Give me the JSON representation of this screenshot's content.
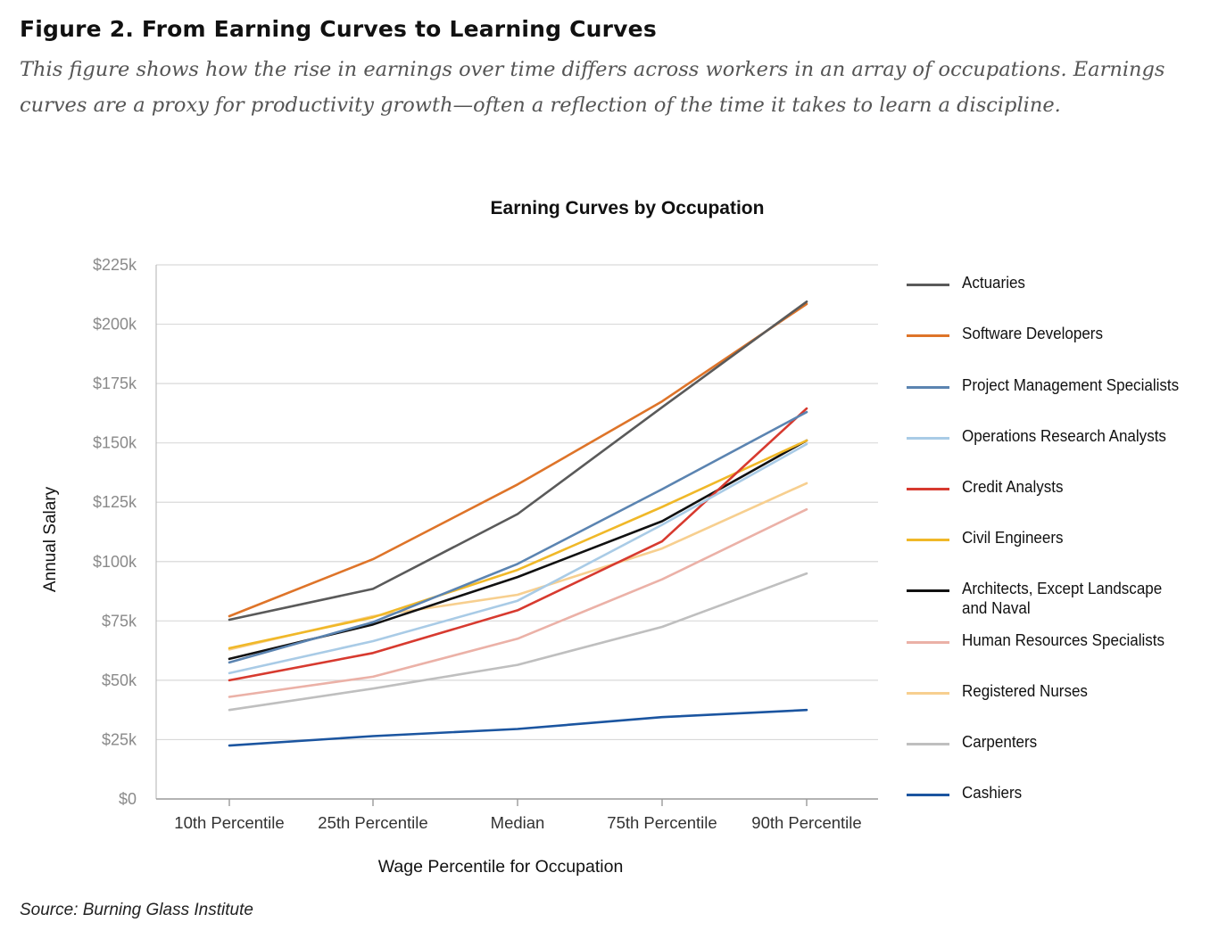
{
  "figure": {
    "title": "Figure 2. From Earning Curves to Learning Curves",
    "caption": "This figure shows how the rise in earnings over time differs across workers in an array of occupations. Earnings curves are a proxy for productivity growth—often a reflection of the time it takes to learn a discipline.",
    "source": "Source: Burning Glass Institute"
  },
  "chart_data": {
    "type": "line",
    "title": "Earning Curves by Occupation",
    "xlabel": "Wage Percentile for Occupation",
    "ylabel": "Annual Salary",
    "categories": [
      "10th Percentile",
      "25th Percentile",
      "Median",
      "75th Percentile",
      "90th Percentile"
    ],
    "ylim": [
      0,
      225000
    ],
    "yticks": [
      0,
      25000,
      50000,
      75000,
      100000,
      125000,
      150000,
      175000,
      200000,
      225000
    ],
    "ytick_labels": [
      "$0",
      "$25k",
      "$50k",
      "$75k",
      "$100k",
      "$125k",
      "$150k",
      "$175k",
      "$200k",
      "$225k"
    ],
    "grid": "horizontal",
    "legend_position": "right",
    "series": [
      {
        "name": "Actuaries",
        "color": "#5a5a5a",
        "values": [
          75500,
          88500,
          120000,
          165000,
          209500
        ]
      },
      {
        "name": "Software Developers",
        "color": "#de7429",
        "values": [
          77000,
          101000,
          132500,
          167500,
          208500
        ]
      },
      {
        "name": "Project Management Specialists",
        "color": "#5b84b1",
        "values": [
          57500,
          74500,
          99000,
          130500,
          163000
        ]
      },
      {
        "name": "Operations Research Analysts",
        "color": "#a9cbe6",
        "values": [
          53000,
          66500,
          83500,
          115500,
          149500
        ]
      },
      {
        "name": "Credit Analysts",
        "color": "#d73a2f",
        "values": [
          50000,
          61500,
          79500,
          108500,
          164500
        ]
      },
      {
        "name": "Civil Engineers",
        "color": "#f0b828",
        "values": [
          63500,
          76500,
          96500,
          123000,
          151000
        ]
      },
      {
        "name": "Architects, Except Landscape and Naval",
        "color": "#111111",
        "values": [
          59000,
          73500,
          93500,
          117000,
          151000
        ]
      },
      {
        "name": "Human Resources Specialists",
        "color": "#ebb1a7",
        "values": [
          43000,
          51500,
          67500,
          92500,
          122000
        ]
      },
      {
        "name": "Registered Nurses",
        "color": "#f7cf8f",
        "values": [
          63000,
          77000,
          86000,
          105500,
          133000
        ]
      },
      {
        "name": "Carpenters",
        "color": "#bfbfbf",
        "values": [
          37500,
          46500,
          56500,
          72500,
          95000
        ]
      },
      {
        "name": "Cashiers",
        "color": "#1b55a0",
        "values": [
          22500,
          26500,
          29500,
          34500,
          37500
        ]
      }
    ]
  }
}
